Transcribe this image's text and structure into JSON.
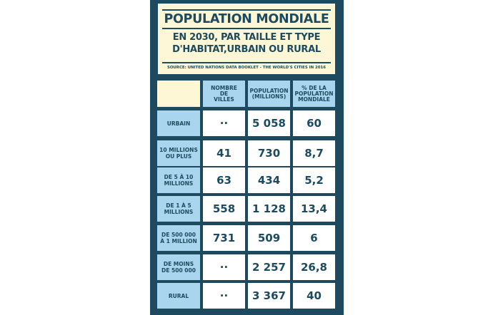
{
  "header": {
    "title": "POPULATION MONDIALE",
    "subtitle_line1": "EN 2030, PAR TAILLE ET TYPE",
    "subtitle_line2": "D'HABITAT,URBAIN OU RURAL",
    "source": "SOURCE: UNITED NATIONS DATA BOOKLET - THE WORLD'S CITIES IN 2016"
  },
  "table": {
    "columns": [
      {
        "l1": "NOMBRE",
        "l2": "DE",
        "l3": "VILLES"
      },
      {
        "l1": "POPULATION",
        "l2": "(MILLIONS)",
        "l3": ""
      },
      {
        "l1": "% DE LA",
        "l2": "POPULATION",
        "l3": "MONDIALE"
      }
    ],
    "rows": [
      {
        "l1": "URBAIN",
        "l2": "",
        "values": [
          "··",
          "5 058",
          "60"
        ]
      },
      {
        "l1": "10 MILLIONS",
        "l2": "OU PLUS",
        "values": [
          "41",
          "730",
          "8,7"
        ]
      },
      {
        "l1": "DE 5 À 10",
        "l2": "MILLIONS",
        "values": [
          "63",
          "434",
          "5,2"
        ]
      },
      {
        "l1": "DE 1 À 5",
        "l2": "MILLIONS",
        "values": [
          "558",
          "1 128",
          "13,4"
        ]
      },
      {
        "l1": "DE 500 000",
        "l2": "À 1 MILLION",
        "values": [
          "731",
          "509",
          "6"
        ]
      },
      {
        "l1": "DE MOINS",
        "l2": "DE 500 000",
        "values": [
          "··",
          "2 257",
          "26,8"
        ]
      },
      {
        "l1": "RURAL",
        "l2": "",
        "values": [
          "··",
          "3 367",
          "40"
        ]
      }
    ]
  },
  "colors": {
    "navy": "#1d4a5e",
    "cream": "#fdf7d6",
    "light_blue": "#a9d6ee",
    "white": "#ffffff"
  }
}
